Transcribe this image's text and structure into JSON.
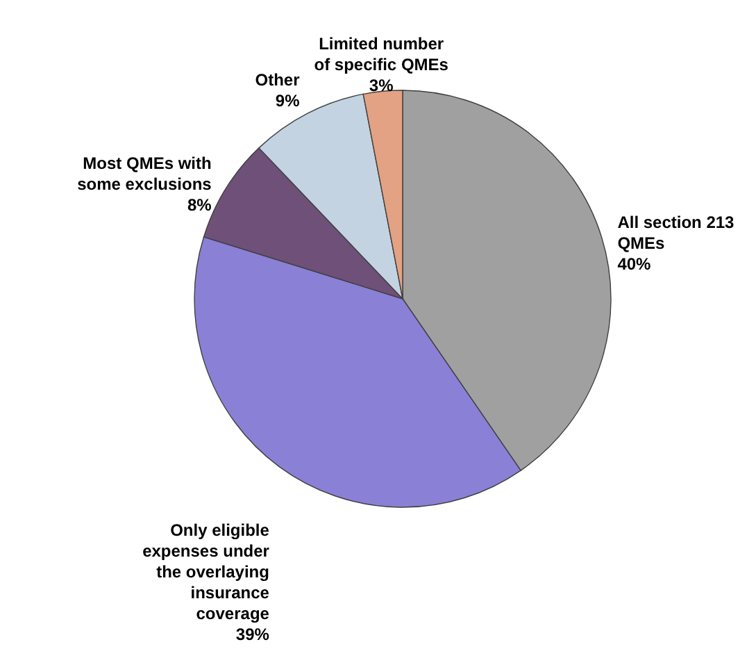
{
  "chart_data": {
    "type": "pie",
    "categories": [
      "All section 213 QMEs",
      "Only eligible expenses under the overlaying insurance coverage",
      "Most QMEs with some exclusions",
      "Other",
      "Limited number of specific QMEs"
    ],
    "values": [
      40,
      39,
      8,
      9,
      3
    ],
    "value_labels": [
      "40%",
      "39%",
      "8%",
      "9%",
      "3%"
    ],
    "colors": [
      "#a0a0a0",
      "#8a80d6",
      "#6f5079",
      "#c3d3e2",
      "#e3a283"
    ]
  }
}
